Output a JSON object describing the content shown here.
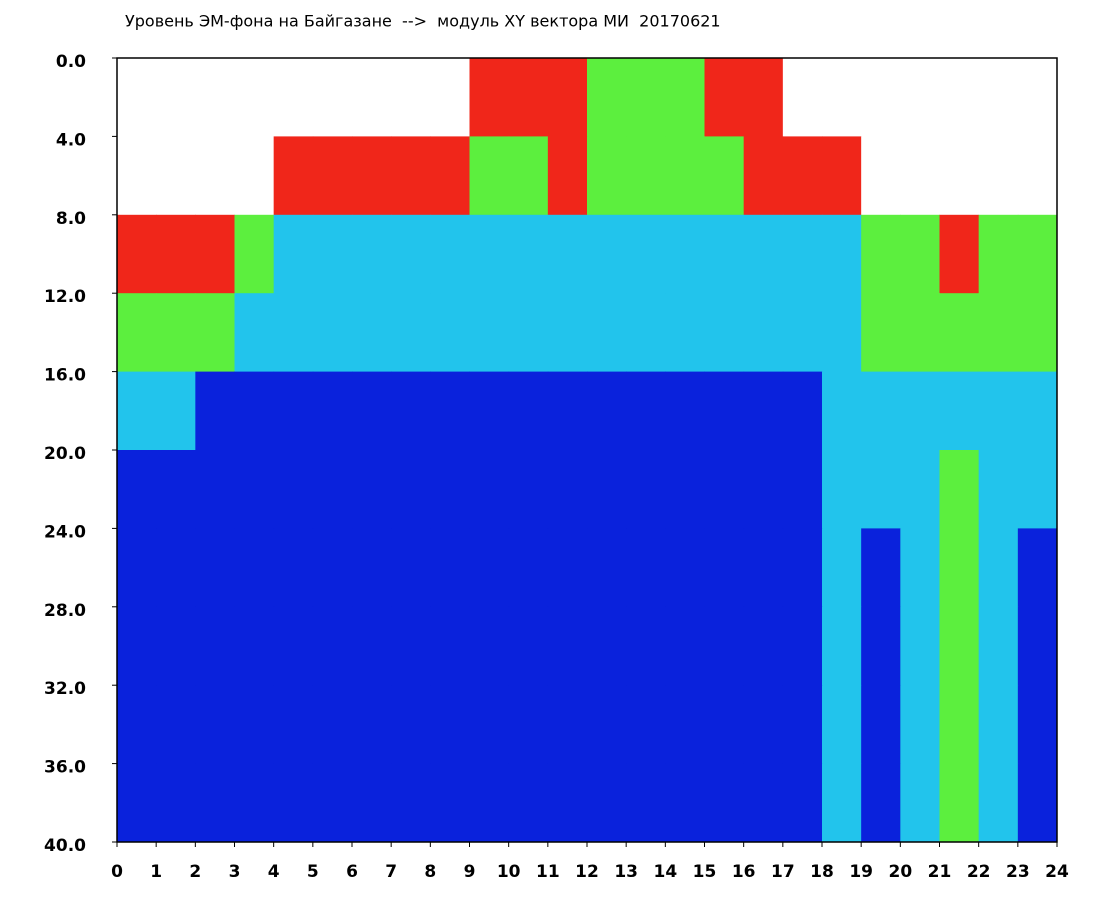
{
  "chart_data": {
    "type": "heatmap",
    "title": "Уровень ЭМ-фона на Байгазане  -->  модуль XY вектора МИ  20170621",
    "xlim": [
      0,
      24
    ],
    "ylim": [
      40,
      0
    ],
    "xticks": [
      0,
      1,
      2,
      3,
      4,
      5,
      6,
      7,
      8,
      9,
      10,
      11,
      12,
      13,
      14,
      15,
      16,
      17,
      18,
      19,
      20,
      21,
      22,
      23,
      24
    ],
    "yticks": [
      {
        "value": 0,
        "label": "0.0"
      },
      {
        "value": 4,
        "label": "4.0"
      },
      {
        "value": 8,
        "label": "8.0"
      },
      {
        "value": 12,
        "label": "12.0"
      },
      {
        "value": 16,
        "label": "16.0"
      },
      {
        "value": 20,
        "label": "20.0"
      },
      {
        "value": 24,
        "label": "24.0"
      },
      {
        "value": 28,
        "label": "28.0"
      },
      {
        "value": 32,
        "label": "32.0"
      },
      {
        "value": 36,
        "label": "36.0"
      },
      {
        "value": 40,
        "label": "40.0"
      }
    ],
    "x_bins": [
      0,
      1,
      2,
      3,
      4,
      5,
      6,
      7,
      8,
      9,
      10,
      11,
      12,
      13,
      14,
      15,
      16,
      17,
      18,
      19,
      20,
      21,
      22,
      23,
      24
    ],
    "y_bins": [
      0,
      4,
      8,
      12,
      16,
      20,
      24,
      28,
      32,
      36,
      40
    ],
    "level_colors": [
      "#ffffff",
      "#0a22dc",
      "#22c4ec",
      "#5cef3e",
      "#f0261a"
    ],
    "z": [
      [
        0,
        0,
        0,
        0,
        0,
        0,
        0,
        0,
        0,
        4,
        4,
        4,
        3,
        3,
        3,
        4,
        4,
        0,
        0,
        0,
        0,
        0,
        0,
        0
      ],
      [
        0,
        0,
        0,
        0,
        4,
        4,
        4,
        4,
        4,
        3,
        3,
        4,
        3,
        3,
        3,
        3,
        4,
        4,
        4,
        0,
        0,
        0,
        0,
        0
      ],
      [
        4,
        4,
        4,
        3,
        2,
        2,
        2,
        2,
        2,
        2,
        2,
        2,
        2,
        2,
        2,
        2,
        2,
        2,
        2,
        3,
        3,
        4,
        3,
        3
      ],
      [
        3,
        3,
        3,
        2,
        2,
        2,
        2,
        2,
        2,
        2,
        2,
        2,
        2,
        2,
        2,
        2,
        2,
        2,
        2,
        3,
        3,
        3,
        3,
        3
      ],
      [
        2,
        2,
        1,
        1,
        1,
        1,
        1,
        1,
        1,
        1,
        1,
        1,
        1,
        1,
        1,
        1,
        1,
        1,
        2,
        2,
        2,
        2,
        2,
        2
      ],
      [
        1,
        1,
        1,
        1,
        1,
        1,
        1,
        1,
        1,
        1,
        1,
        1,
        1,
        1,
        1,
        1,
        1,
        1,
        2,
        2,
        2,
        3,
        2,
        2
      ],
      [
        1,
        1,
        1,
        1,
        1,
        1,
        1,
        1,
        1,
        1,
        1,
        1,
        1,
        1,
        1,
        1,
        1,
        1,
        2,
        1,
        2,
        3,
        2,
        1
      ],
      [
        1,
        1,
        1,
        1,
        1,
        1,
        1,
        1,
        1,
        1,
        1,
        1,
        1,
        1,
        1,
        1,
        1,
        1,
        2,
        1,
        2,
        3,
        2,
        1
      ],
      [
        1,
        1,
        1,
        1,
        1,
        1,
        1,
        1,
        1,
        1,
        1,
        1,
        1,
        1,
        1,
        1,
        1,
        1,
        2,
        1,
        2,
        3,
        2,
        1
      ],
      [
        1,
        1,
        1,
        1,
        1,
        1,
        1,
        1,
        1,
        1,
        1,
        1,
        1,
        1,
        1,
        1,
        1,
        1,
        2,
        1,
        2,
        3,
        2,
        1
      ]
    ]
  }
}
